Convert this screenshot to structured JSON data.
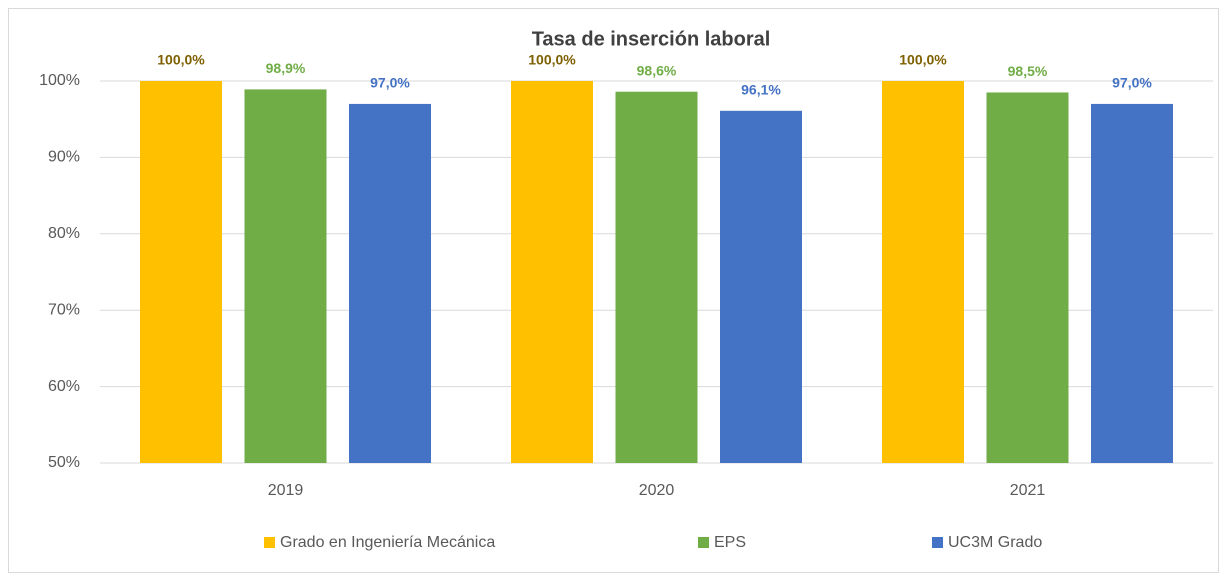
{
  "chart_data": {
    "type": "bar",
    "title": "Tasa de inserción laboral",
    "categories": [
      "2019",
      "2020",
      "2021"
    ],
    "series": [
      {
        "name": "Grado en Ingeniería Mecánica",
        "color": "#FFC000",
        "label_color": "#7F6000",
        "values": [
          100,
          100,
          100
        ],
        "value_labels": [
          "100,0%",
          "100,0%",
          "100,0%"
        ]
      },
      {
        "name": "EPS",
        "color": "#70AD47",
        "label_color": "#70AD47",
        "values": [
          98.9,
          98.6,
          98.5
        ],
        "value_labels": [
          "98,9%",
          "98,6%",
          "98,5%"
        ]
      },
      {
        "name": "UC3M Grado",
        "color": "#4472C4",
        "label_color": "#4472C4",
        "values": [
          97.0,
          96.1,
          97.0
        ],
        "value_labels": [
          "97,0%",
          "96,1%",
          "97,0%"
        ]
      }
    ],
    "ylim": [
      50,
      100
    ],
    "yticks": [
      {
        "value": 50,
        "label": "50%"
      },
      {
        "value": 60,
        "label": "60%"
      },
      {
        "value": 70,
        "label": "70%"
      },
      {
        "value": 80,
        "label": "80%"
      },
      {
        "value": 90,
        "label": "90%"
      },
      {
        "value": 100,
        "label": "100%"
      }
    ],
    "grid": true,
    "legend": "bottom"
  }
}
